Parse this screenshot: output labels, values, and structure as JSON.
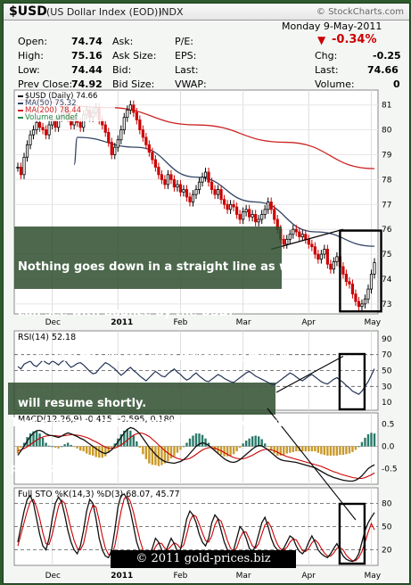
{
  "header": {
    "symbol": "$USD",
    "name": "(US Dollar Index (EOD))",
    "exchange": "INDX",
    "logo": "© StockCharts.com"
  },
  "quote": {
    "date": "Monday  9-May-2011",
    "open_label": "Open:",
    "open": "74.74",
    "high_label": "High:",
    "high": "75.16",
    "low_label": "Low:",
    "low": "74.44",
    "prev_label": "Prev Close:",
    "prev": "74.92",
    "ask_label": "Ask:",
    "asksize_label": "Ask Size:",
    "bid_label": "Bid:",
    "bidsize_label": "Bid Size:",
    "pe_label": "P/E:",
    "eps_label": "EPS:",
    "last_label": "Last:",
    "vwap_label": "VWAP:",
    "pct": "-0.34%",
    "chg_label": "Chg:",
    "chg": "-0.25",
    "last2_label": "Last:",
    "last": "74.66",
    "vol_label": "Volume:",
    "vol": "0",
    "colors": {
      "down": "#cc0000"
    }
  },
  "annotations": {
    "main": [
      "Nothing goes down in a straight line as we",
      "can see with bounce by the USD.",
      "However, the 'managed' downward trend",
      "will resume shortly."
    ],
    "rsi": [
      "Two days of heading north and the oversold",
      "position has been reversed."
    ],
    "copyright": "© 2011 gold-prices.biz"
  },
  "chart_data": [
    {
      "type": "candlestick",
      "title": "$USD (Daily) 74.66",
      "legend": [
        "$USD (Daily) 74.66",
        "MA(50) 75.32",
        "MA(200) 78.44",
        "Volume undef"
      ],
      "legend_colors": [
        "#000000",
        "#334466",
        "#cc2222",
        "#228844"
      ],
      "ylim": [
        72.6,
        81.6
      ],
      "yticks": [
        73,
        74,
        75,
        76,
        77,
        78,
        79,
        80,
        81
      ],
      "x_months": [
        "Dec",
        "2011",
        "Feb",
        "Mar",
        "Apr",
        "May"
      ],
      "x_month_index": [
        11,
        32,
        52,
        72,
        93,
        113
      ],
      "closes": [
        78.5,
        78.2,
        78.9,
        79.4,
        79.8,
        80.0,
        80.3,
        80.1,
        80.0,
        79.8,
        80.2,
        80.4,
        80.1,
        80.5,
        80.6,
        80.8,
        80.5,
        80.2,
        80.4,
        80.3,
        80.1,
        80.6,
        80.8,
        80.5,
        80.7,
        80.9,
        80.4,
        80.2,
        79.9,
        79.5,
        79.0,
        79.3,
        79.6,
        80.0,
        80.5,
        80.8,
        81.0,
        80.7,
        80.4,
        80.0,
        79.7,
        79.4,
        79.1,
        78.8,
        78.5,
        78.2,
        78.0,
        77.8,
        78.2,
        78.0,
        77.7,
        77.8,
        77.5,
        77.6,
        77.3,
        77.1,
        77.4,
        77.6,
        77.9,
        78.1,
        78.3,
        77.9,
        77.6,
        77.4,
        77.6,
        77.2,
        77.0,
        76.8,
        77.0,
        76.9,
        76.6,
        76.4,
        76.7,
        76.8,
        76.5,
        76.6,
        76.3,
        76.4,
        76.6,
        76.8,
        77.1,
        76.8,
        76.4,
        76.0,
        75.6,
        75.4,
        75.6,
        75.8,
        76.0,
        75.9,
        75.7,
        75.8,
        75.6,
        75.4,
        75.3,
        75.0,
        74.8,
        75.0,
        75.2,
        74.6,
        74.4,
        74.7,
        74.9,
        74.5,
        74.2,
        73.9,
        73.8,
        73.4,
        73.1,
        72.9,
        73.0,
        73.2,
        73.6,
        74.2,
        74.66
      ],
      "ma50_ends": [
        78.6,
        79.7,
        79.3,
        78.1,
        77.1,
        75.9,
        75.32
      ],
      "ma200_ends": [
        81.2,
        80.9,
        80.2,
        79.5,
        78.44
      ]
    },
    {
      "type": "line",
      "title": "RSI(14) 52.18",
      "ylim": [
        0,
        100
      ],
      "yticks": [
        10,
        30,
        50,
        70,
        90
      ],
      "dashed": [
        30,
        50,
        70
      ],
      "values": [
        55,
        52,
        58,
        60,
        62,
        57,
        55,
        59,
        63,
        60,
        58,
        62,
        60,
        57,
        61,
        63,
        58,
        54,
        56,
        59,
        60,
        57,
        53,
        49,
        46,
        47,
        52,
        56,
        60,
        58,
        55,
        52,
        48,
        44,
        47,
        51,
        54,
        50,
        47,
        43,
        40,
        37,
        41,
        45,
        49,
        46,
        43,
        42,
        46,
        49,
        52,
        48,
        45,
        41,
        38,
        40,
        44,
        47,
        43,
        40,
        37,
        36,
        39,
        42,
        45,
        43,
        40,
        38,
        36,
        35,
        38,
        41,
        44,
        47,
        49,
        46,
        43,
        41,
        39,
        37,
        35,
        33,
        32,
        35,
        38,
        41,
        44,
        47,
        45,
        42,
        39,
        37,
        40,
        43,
        45,
        42,
        39,
        36,
        34,
        33,
        36,
        39,
        41,
        38,
        35,
        31,
        28,
        24,
        22,
        20,
        24,
        30,
        36,
        44,
        52.18
      ]
    },
    {
      "type": "macd",
      "title": "MACD(12,26,9) -0.415, -0.595, 0.180",
      "ylim": [
        -0.85,
        0.75
      ],
      "yticks": [
        -0.5,
        0.0,
        0.5
      ],
      "macd": [
        -0.2,
        -0.1,
        0.0,
        0.12,
        0.22,
        0.3,
        0.35,
        0.36,
        0.33,
        0.28,
        0.25,
        0.24,
        0.22,
        0.2,
        0.23,
        0.27,
        0.3,
        0.28,
        0.25,
        0.22,
        0.18,
        0.15,
        0.1,
        0.05,
        0.0,
        -0.05,
        -0.1,
        -0.14,
        -0.16,
        -0.13,
        -0.08,
        0.0,
        0.1,
        0.2,
        0.3,
        0.38,
        0.42,
        0.4,
        0.35,
        0.28,
        0.18,
        0.08,
        -0.02,
        -0.1,
        -0.18,
        -0.25,
        -0.3,
        -0.34,
        -0.36,
        -0.37,
        -0.38,
        -0.36,
        -0.34,
        -0.3,
        -0.24,
        -0.16,
        -0.08,
        0.0,
        0.05,
        0.08,
        0.06,
        0.02,
        -0.04,
        -0.1,
        -0.16,
        -0.22,
        -0.28,
        -0.32,
        -0.35,
        -0.36,
        -0.34,
        -0.3,
        -0.24,
        -0.18,
        -0.12,
        -0.06,
        -0.01,
        0.02,
        0.01,
        -0.03,
        -0.08,
        -0.14,
        -0.2,
        -0.26,
        -0.3,
        -0.32,
        -0.33,
        -0.34,
        -0.35,
        -0.36,
        -0.38,
        -0.4,
        -0.42,
        -0.44,
        -0.46,
        -0.48,
        -0.52,
        -0.56,
        -0.6,
        -0.64,
        -0.67,
        -0.7,
        -0.72,
        -0.74,
        -0.76,
        -0.77,
        -0.78,
        -0.78,
        -0.76,
        -0.72,
        -0.66,
        -0.58,
        -0.5,
        -0.45,
        -0.415
      ],
      "signal": [
        -0.1,
        -0.08,
        -0.05,
        -0.01,
        0.04,
        0.09,
        0.14,
        0.18,
        0.21,
        0.23,
        0.24,
        0.24,
        0.24,
        0.23,
        0.23,
        0.24,
        0.25,
        0.26,
        0.26,
        0.25,
        0.24,
        0.22,
        0.2,
        0.17,
        0.13,
        0.1,
        0.06,
        0.02,
        -0.02,
        -0.04,
        -0.05,
        -0.04,
        -0.01,
        0.03,
        0.08,
        0.14,
        0.2,
        0.25,
        0.28,
        0.3,
        0.29,
        0.26,
        0.22,
        0.16,
        0.1,
        0.03,
        -0.03,
        -0.1,
        -0.15,
        -0.2,
        -0.24,
        -0.27,
        -0.29,
        -0.3,
        -0.29,
        -0.27,
        -0.23,
        -0.18,
        -0.13,
        -0.08,
        -0.05,
        -0.03,
        -0.03,
        -0.04,
        -0.07,
        -0.1,
        -0.14,
        -0.18,
        -0.22,
        -0.25,
        -0.27,
        -0.28,
        -0.28,
        -0.26,
        -0.23,
        -0.2,
        -0.16,
        -0.12,
        -0.09,
        -0.07,
        -0.07,
        -0.08,
        -0.1,
        -0.13,
        -0.17,
        -0.2,
        -0.23,
        -0.25,
        -0.27,
        -0.29,
        -0.31,
        -0.33,
        -0.35,
        -0.37,
        -0.39,
        -0.41,
        -0.43,
        -0.45,
        -0.48,
        -0.51,
        -0.54,
        -0.57,
        -0.59,
        -0.62,
        -0.64,
        -0.66,
        -0.68,
        -0.7,
        -0.71,
        -0.72,
        -0.72,
        -0.7,
        -0.67,
        -0.64,
        -0.595
      ]
    },
    {
      "type": "stochastic",
      "title": "Full STO %K(14,3) %D(3) 68.07, 45.77",
      "ylim": [
        0,
        100
      ],
      "yticks": [
        20,
        50,
        80
      ],
      "dashed": [
        20,
        50,
        80
      ],
      "k": [
        30,
        50,
        70,
        85,
        90,
        80,
        60,
        40,
        25,
        20,
        35,
        60,
        80,
        88,
        82,
        65,
        45,
        30,
        20,
        15,
        25,
        45,
        70,
        85,
        80,
        60,
        35,
        20,
        12,
        10,
        20,
        45,
        75,
        90,
        92,
        85,
        70,
        50,
        30,
        18,
        12,
        10,
        14,
        22,
        35,
        30,
        20,
        15,
        25,
        35,
        28,
        18,
        20,
        40,
        60,
        70,
        65,
        55,
        40,
        30,
        25,
        35,
        55,
        65,
        60,
        45,
        30,
        20,
        15,
        20,
        35,
        50,
        45,
        35,
        22,
        18,
        25,
        40,
        55,
        62,
        50,
        35,
        25,
        20,
        18,
        22,
        30,
        38,
        35,
        25,
        18,
        15,
        20,
        30,
        38,
        30,
        20,
        15,
        12,
        10,
        15,
        22,
        28,
        20,
        12,
        8,
        6,
        5,
        8,
        15,
        30,
        45,
        55,
        62,
        68.07
      ],
      "d": [
        25,
        40,
        55,
        70,
        82,
        85,
        75,
        60,
        42,
        28,
        27,
        40,
        58,
        76,
        84,
        80,
        64,
        47,
        32,
        22,
        20,
        28,
        47,
        67,
        78,
        75,
        58,
        38,
        22,
        14,
        14,
        25,
        47,
        70,
        86,
        89,
        82,
        68,
        50,
        33,
        20,
        13,
        12,
        15,
        24,
        29,
        28,
        22,
        20,
        25,
        29,
        27,
        22,
        26,
        40,
        57,
        65,
        63,
        53,
        42,
        32,
        30,
        38,
        52,
        60,
        57,
        45,
        32,
        22,
        18,
        23,
        35,
        43,
        43,
        34,
        25,
        22,
        28,
        40,
        52,
        56,
        49,
        37,
        27,
        21,
        20,
        23,
        30,
        34,
        33,
        26,
        19,
        18,
        22,
        29,
        33,
        29,
        22,
        16,
        12,
        12,
        16,
        22,
        23,
        20,
        13,
        9,
        6,
        6,
        10,
        18,
        30,
        43,
        54,
        45.77
      ]
    }
  ]
}
